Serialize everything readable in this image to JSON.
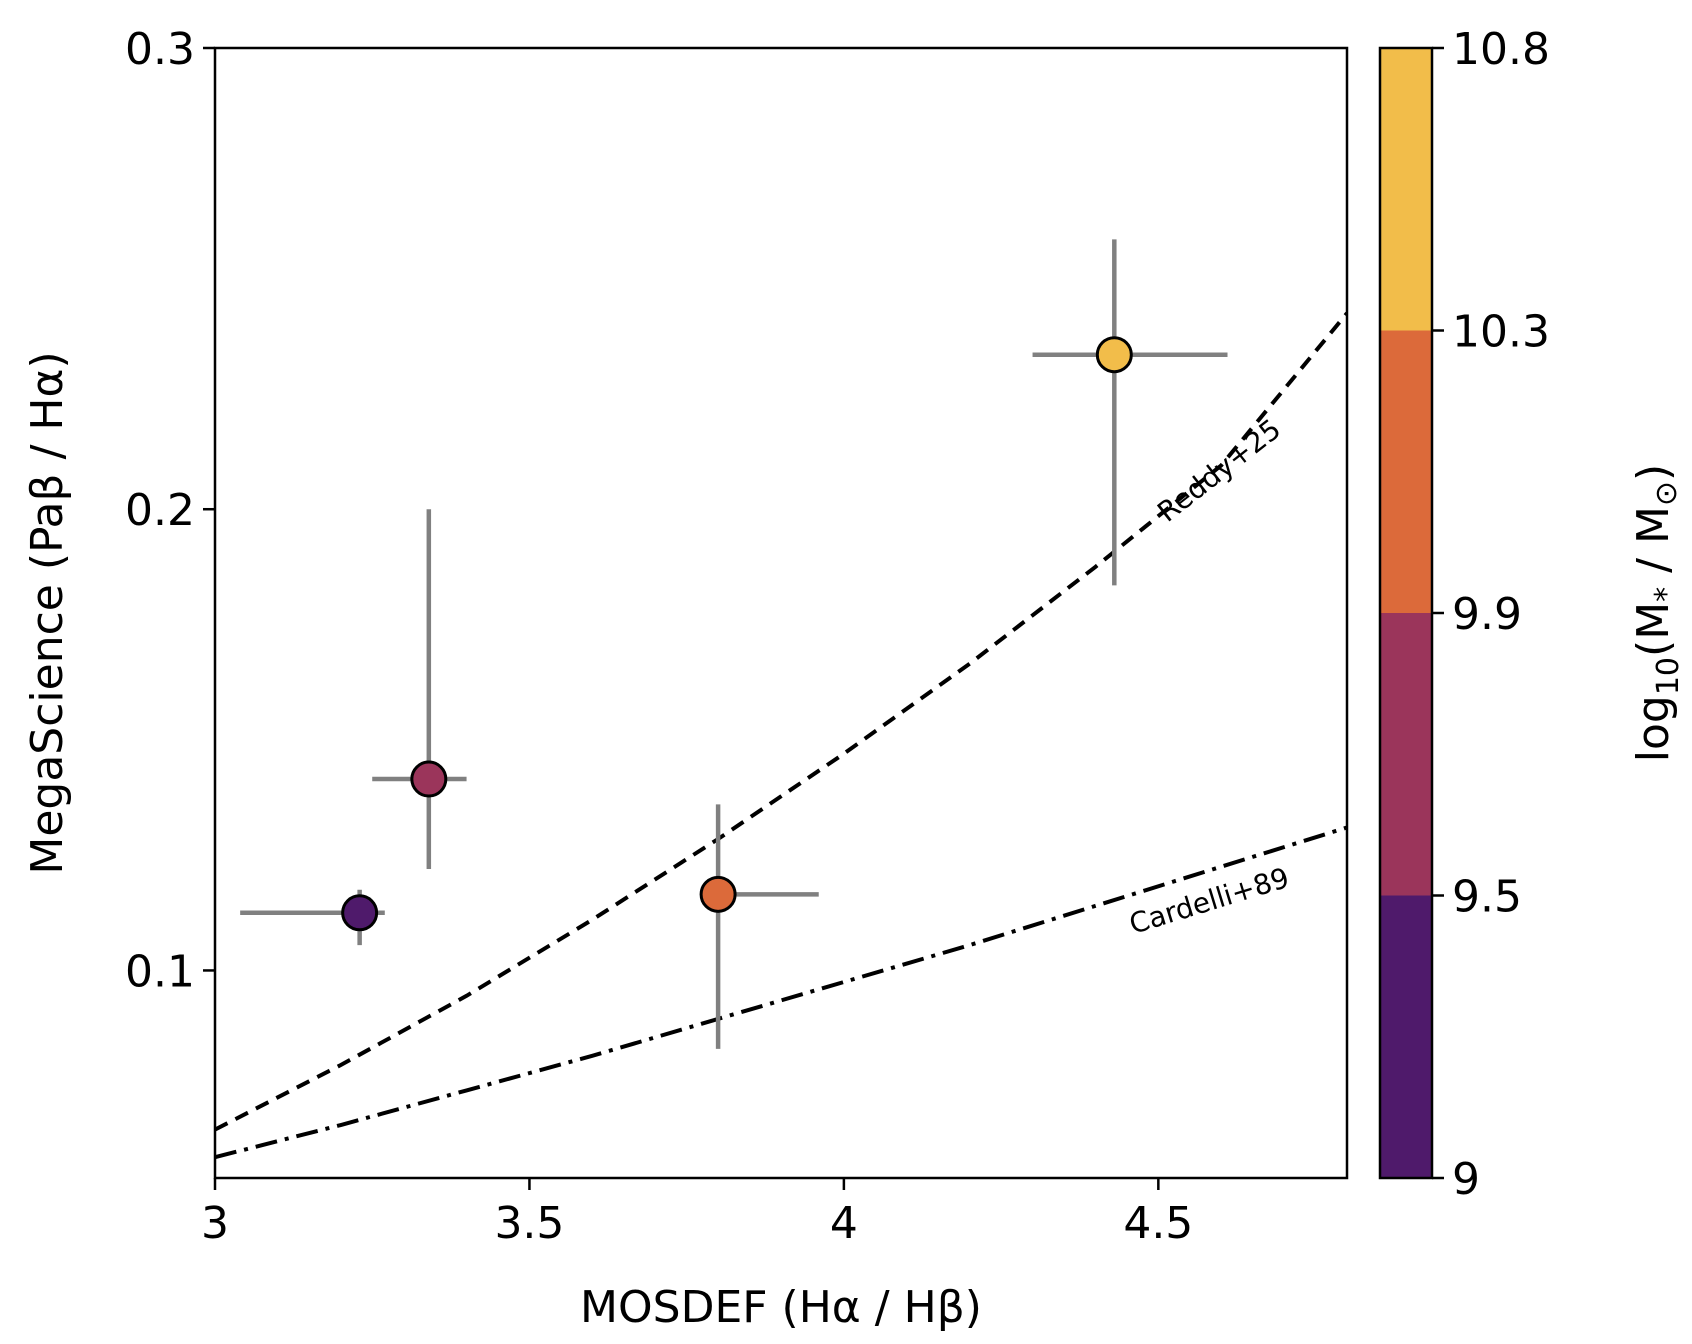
{
  "chart_data": {
    "type": "scatter",
    "xlabel": "MOSDEF (Hα / Hβ)",
    "ylabel": "MegaScience (Paβ / Hα)",
    "xlim": [
      3.0,
      4.8
    ],
    "ylim": [
      0.055,
      0.3
    ],
    "x_ticks": [
      {
        "value": 3.0,
        "label": "3"
      },
      {
        "value": 3.5,
        "label": "3.5"
      },
      {
        "value": 4.0,
        "label": "4"
      },
      {
        "value": 4.5,
        "label": "4.5"
      }
    ],
    "y_ticks": [
      {
        "value": 0.1,
        "label": "0.1"
      },
      {
        "value": 0.2,
        "label": "0.2"
      },
      {
        "value": 0.3,
        "label": "0.3"
      }
    ],
    "points": [
      {
        "x": 3.23,
        "y": 0.1125,
        "xerr": [
          0.19,
          0.04
        ],
        "yerr": [
          0.007,
          0.005
        ],
        "color": "#4f1a6b"
      },
      {
        "x": 3.34,
        "y": 0.1415,
        "xerr": [
          0.09,
          0.06
        ],
        "yerr": [
          0.0195,
          0.0585
        ],
        "color": "#9b355b"
      },
      {
        "x": 3.8,
        "y": 0.1165,
        "xerr": [
          0.0,
          0.16
        ],
        "yerr": [
          0.0335,
          0.0195
        ],
        "color": "#dc6a3a"
      },
      {
        "x": 4.43,
        "y": 0.2335,
        "xerr": [
          0.13,
          0.18
        ],
        "yerr": [
          0.05,
          0.025
        ],
        "color": "#f2bd4a"
      }
    ],
    "curves": [
      {
        "label": "Reddy+25",
        "style": "dashed",
        "x": [
          3.0,
          3.2,
          3.4,
          3.6,
          3.8,
          4.0,
          4.2,
          4.4,
          4.6,
          4.8
        ],
        "y": [
          0.0655,
          0.0795,
          0.0945,
          0.111,
          0.1285,
          0.147,
          0.1665,
          0.1875,
          0.2095,
          0.2425
        ]
      },
      {
        "label": "Cardelli+89",
        "style": "dashdot",
        "x": [
          3.0,
          3.2,
          3.4,
          3.6,
          3.8,
          4.0,
          4.2,
          4.4,
          4.6,
          4.8
        ],
        "y": [
          0.0595,
          0.0665,
          0.074,
          0.0815,
          0.0895,
          0.0975,
          0.1055,
          0.114,
          0.1225,
          0.131
        ]
      }
    ],
    "colorbar": {
      "label": "log10(M* / M⊙)",
      "label_main": "log",
      "label_sub": "10",
      "label_rest": "(M",
      "label_star": "*",
      "label_mid": " / M",
      "label_sun": "⊙",
      "label_end": ")",
      "boundaries": [
        9.0,
        9.5,
        9.9,
        10.3,
        10.8
      ],
      "tick_labels": [
        "9",
        "9.5",
        "9.9",
        "10.3",
        "10.8"
      ],
      "colors": [
        "#4f1a6b",
        "#9b355b",
        "#dc6a3a",
        "#f2bd4a"
      ]
    },
    "grid": false,
    "legend": "none"
  }
}
